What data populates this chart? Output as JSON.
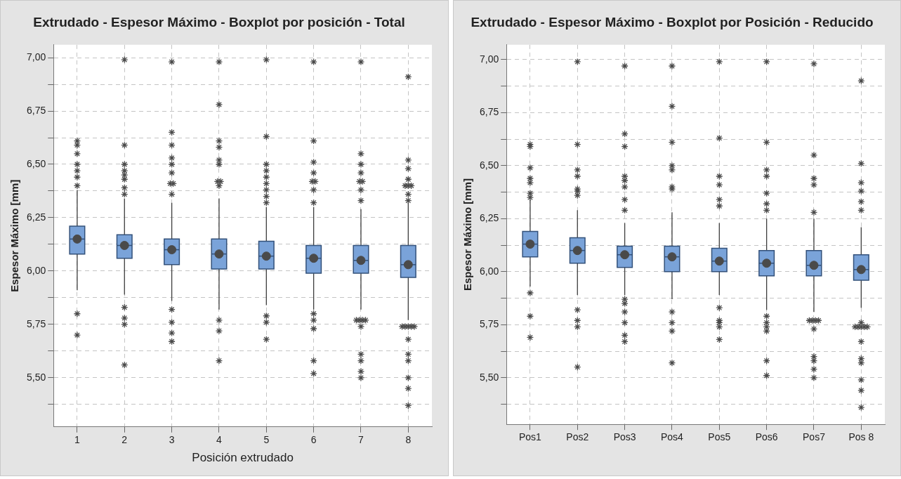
{
  "chart_data": [
    {
      "type": "box",
      "title": "Extrudado - Espesor Máximo - Boxplot por posición - Total",
      "xlabel": "Posición extrudado",
      "ylabel": "Espesor Máximo [mm]",
      "categories": [
        "1",
        "2",
        "3",
        "4",
        "5",
        "6",
        "7",
        "8"
      ],
      "color": "#7aa3d9",
      "boxes": [
        {
          "low": 5.91,
          "q1": 6.08,
          "median": 6.15,
          "q3": 6.21,
          "high": 6.38,
          "mean": 6.15,
          "outliers": [
            6.61,
            6.59,
            6.55,
            6.5,
            6.47,
            6.44,
            6.4,
            5.8,
            5.7
          ]
        },
        {
          "low": 5.89,
          "q1": 6.06,
          "median": 6.12,
          "q3": 6.17,
          "high": 6.34,
          "mean": 6.12,
          "outliers": [
            6.99,
            6.59,
            6.5,
            6.47,
            6.45,
            6.43,
            6.39,
            6.36,
            5.83,
            5.78,
            5.75,
            5.56
          ]
        },
        {
          "low": 5.86,
          "q1": 6.03,
          "median": 6.1,
          "q3": 6.15,
          "high": 6.32,
          "mean": 6.1,
          "outliers": [
            6.98,
            6.65,
            6.59,
            6.53,
            6.5,
            6.46,
            6.41,
            6.41,
            6.36,
            5.82,
            5.76,
            5.71,
            5.67
          ]
        },
        {
          "low": 5.82,
          "q1": 6.01,
          "median": 6.08,
          "q3": 6.15,
          "high": 6.34,
          "mean": 6.08,
          "outliers": [
            6.98,
            6.78,
            6.61,
            6.58,
            6.52,
            6.5,
            6.42,
            6.42,
            6.4,
            5.77,
            5.72,
            5.58
          ]
        },
        {
          "low": 5.84,
          "q1": 6.01,
          "median": 6.07,
          "q3": 6.14,
          "high": 6.3,
          "mean": 6.07,
          "outliers": [
            6.99,
            6.63,
            6.5,
            6.47,
            6.44,
            6.41,
            6.38,
            6.35,
            6.32,
            5.79,
            5.76,
            5.68
          ]
        },
        {
          "low": 5.82,
          "q1": 5.99,
          "median": 6.06,
          "q3": 6.12,
          "high": 6.3,
          "mean": 6.06,
          "outliers": [
            6.98,
            6.61,
            6.51,
            6.46,
            6.42,
            6.42,
            6.38,
            6.32,
            5.8,
            5.77,
            5.73,
            5.58,
            5.52
          ]
        },
        {
          "low": 5.82,
          "q1": 5.99,
          "median": 6.05,
          "q3": 6.12,
          "high": 6.29,
          "mean": 6.05,
          "outliers": [
            6.98,
            6.55,
            6.5,
            6.46,
            6.42,
            6.42,
            6.38,
            6.33,
            5.77,
            5.77,
            5.77,
            5.77,
            5.74,
            5.61,
            5.58,
            5.53,
            5.5
          ]
        },
        {
          "low": 5.77,
          "q1": 5.97,
          "median": 6.03,
          "q3": 6.12,
          "high": 6.32,
          "mean": 6.03,
          "outliers": [
            6.91,
            6.52,
            6.48,
            6.43,
            6.4,
            6.4,
            6.4,
            6.36,
            6.33,
            5.74,
            5.74,
            5.74,
            5.74,
            5.74,
            5.68,
            5.61,
            5.58,
            5.5,
            5.45,
            5.37
          ]
        }
      ],
      "ylim": [
        5.27,
        7.06
      ],
      "yticks": [
        {
          "value": 5.375,
          "label": null
        },
        {
          "value": 5.5,
          "label": "5,50"
        },
        {
          "value": 5.625,
          "label": null
        },
        {
          "value": 5.75,
          "label": "5,75"
        },
        {
          "value": 5.875,
          "label": null
        },
        {
          "value": 6,
          "label": "6,00"
        },
        {
          "value": 6.125,
          "label": null
        },
        {
          "value": 6.25,
          "label": "6,25"
        },
        {
          "value": 6.375,
          "label": null
        },
        {
          "value": 6.5,
          "label": "6,50"
        },
        {
          "value": 6.625,
          "label": null
        },
        {
          "value": 6.75,
          "label": "6,75"
        },
        {
          "value": 6.875,
          "label": null
        },
        {
          "value": 7,
          "label": "7,00"
        }
      ],
      "grid": true,
      "marker": "star"
    },
    {
      "type": "box",
      "title": "Extrudado - Espesor Máximo - Boxplot por Posición - Reducido",
      "ylabel": "Espesor Máximo [mm]",
      "categories": [
        "Pos1",
        "Pos2",
        "Pos3",
        "Pos4",
        "Pos5",
        "Pos6",
        "Pos7",
        "Pos 8"
      ],
      "color": "#7aa3d9",
      "boxes": [
        {
          "low": 5.93,
          "q1": 6.07,
          "median": 6.13,
          "q3": 6.19,
          "high": 6.34,
          "mean": 6.13,
          "outliers": [
            6.6,
            6.59,
            6.49,
            6.44,
            6.42,
            6.37,
            6.35,
            5.9,
            5.79,
            5.69
          ]
        },
        {
          "low": 5.89,
          "q1": 6.04,
          "median": 6.1,
          "q3": 6.16,
          "high": 6.29,
          "mean": 6.1,
          "outliers": [
            6.99,
            6.6,
            6.48,
            6.45,
            6.39,
            6.38,
            6.36,
            5.82,
            5.77,
            5.74,
            5.55
          ]
        },
        {
          "low": 5.89,
          "q1": 6.02,
          "median": 6.08,
          "q3": 6.12,
          "high": 6.23,
          "mean": 6.08,
          "outliers": [
            6.97,
            6.65,
            6.59,
            6.45,
            6.43,
            6.4,
            6.34,
            6.29,
            5.87,
            5.85,
            5.81,
            5.76,
            5.7,
            5.67
          ]
        },
        {
          "low": 5.87,
          "q1": 6,
          "median": 6.07,
          "q3": 6.12,
          "high": 6.28,
          "mean": 6.07,
          "outliers": [
            6.97,
            6.78,
            6.61,
            6.5,
            6.48,
            6.4,
            6.39,
            5.81,
            5.76,
            5.72,
            5.57
          ]
        },
        {
          "low": 5.89,
          "q1": 6,
          "median": 6.05,
          "q3": 6.11,
          "high": 6.23,
          "mean": 6.05,
          "outliers": [
            6.99,
            6.63,
            6.45,
            6.41,
            6.34,
            6.31,
            5.83,
            5.77,
            5.76,
            5.74,
            5.68
          ]
        },
        {
          "low": 5.82,
          "q1": 5.98,
          "median": 6.04,
          "q3": 6.1,
          "high": 6.25,
          "mean": 6.04,
          "outliers": [
            6.99,
            6.61,
            6.48,
            6.45,
            6.37,
            6.32,
            6.29,
            5.79,
            5.76,
            5.74,
            5.72,
            5.58,
            5.51
          ]
        },
        {
          "low": 5.81,
          "q1": 5.98,
          "median": 6.03,
          "q3": 6.1,
          "high": 6.25,
          "mean": 6.03,
          "outliers": [
            6.98,
            6.55,
            6.44,
            6.41,
            6.28,
            5.77,
            5.77,
            5.77,
            5.77,
            5.73,
            5.6,
            5.58,
            5.54,
            5.5
          ]
        },
        {
          "low": 5.83,
          "q1": 5.96,
          "median": 6.01,
          "q3": 6.08,
          "high": 6.21,
          "mean": 6.01,
          "outliers": [
            6.9,
            6.51,
            6.42,
            6.38,
            6.33,
            6.29,
            5.76,
            5.74,
            5.74,
            5.74,
            5.74,
            5.74,
            5.67,
            5.59,
            5.57,
            5.49,
            5.44,
            5.36
          ]
        }
      ],
      "ylim": [
        5.28,
        7.07
      ],
      "yticks": [
        {
          "value": 5.375,
          "label": null
        },
        {
          "value": 5.5,
          "label": "5,50"
        },
        {
          "value": 5.625,
          "label": null
        },
        {
          "value": 5.75,
          "label": "5,75"
        },
        {
          "value": 5.875,
          "label": null
        },
        {
          "value": 6,
          "label": "6,00"
        },
        {
          "value": 6.125,
          "label": null
        },
        {
          "value": 6.25,
          "label": "6,25"
        },
        {
          "value": 6.375,
          "label": null
        },
        {
          "value": 6.5,
          "label": "6,50"
        },
        {
          "value": 6.625,
          "label": null
        },
        {
          "value": 6.75,
          "label": "6,75"
        },
        {
          "value": 6.875,
          "label": null
        },
        {
          "value": 7,
          "label": "7,00"
        }
      ],
      "grid": true,
      "marker": "star"
    }
  ]
}
